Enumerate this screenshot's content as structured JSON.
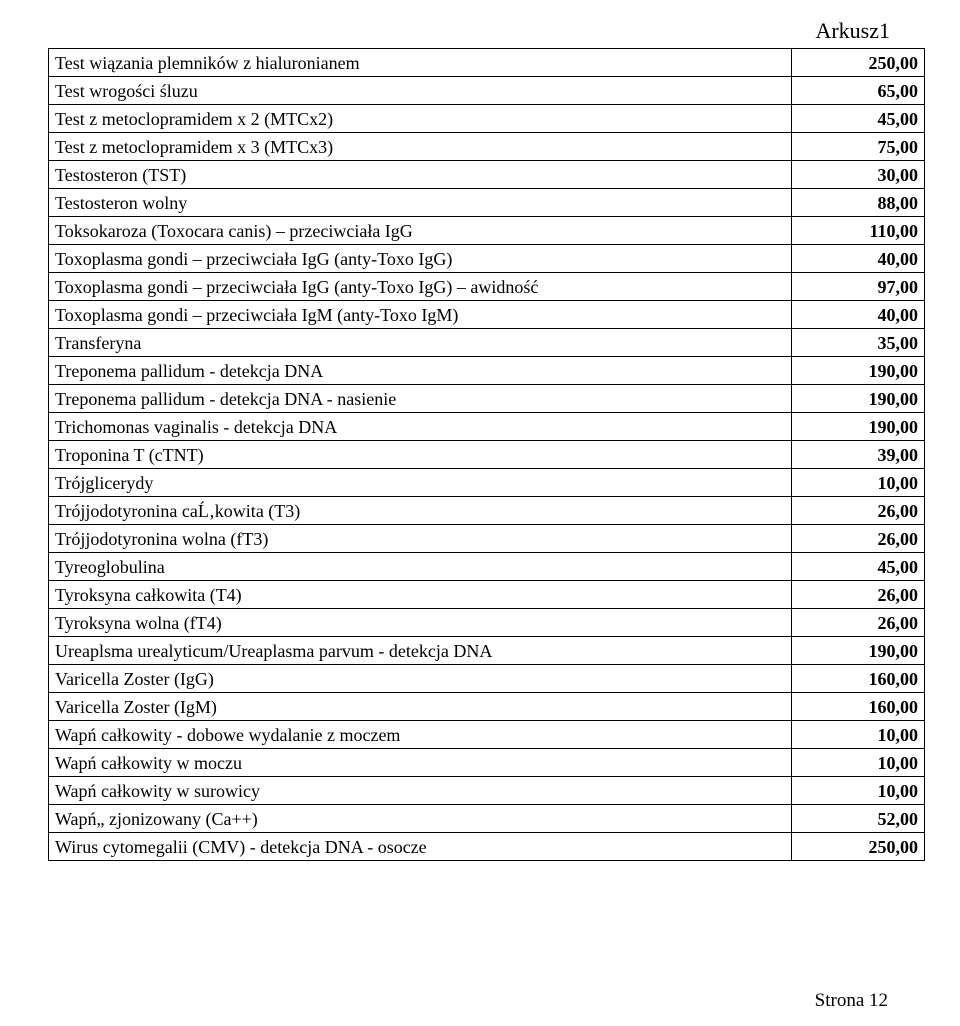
{
  "sheet_label": "Arkusz1",
  "footer": "Strona 12",
  "table": {
    "rows": [
      {
        "name": "Test wiązania plemników z hialuronianem",
        "price": "250,00"
      },
      {
        "name": "Test wrogości śluzu",
        "price": "65,00"
      },
      {
        "name": "Test z metoclopramidem x 2 (MTCx2)",
        "price": "45,00"
      },
      {
        "name": "Test z metoclopramidem x 3 (MTCx3)",
        "price": "75,00"
      },
      {
        "name": "Testosteron (TST)",
        "price": "30,00"
      },
      {
        "name": "Testosteron wolny",
        "price": "88,00"
      },
      {
        "name": "Toksokaroza (Toxocara canis) – przeciwciała IgG",
        "price": "110,00"
      },
      {
        "name": "Toxoplasma gondi – przeciwciała IgG (anty-Toxo IgG)",
        "price": "40,00"
      },
      {
        "name": "Toxoplasma gondi – przeciwciała IgG (anty-Toxo IgG) – awidność",
        "price": "97,00"
      },
      {
        "name": "Toxoplasma gondi – przeciwciała IgM (anty-Toxo IgM)",
        "price": "40,00"
      },
      {
        "name": "Transferyna",
        "price": "35,00"
      },
      {
        "name": "Treponema pallidum - detekcja DNA",
        "price": "190,00"
      },
      {
        "name": "Treponema pallidum - detekcja DNA - nasienie",
        "price": "190,00"
      },
      {
        "name": "Trichomonas vaginalis - detekcja DNA",
        "price": "190,00"
      },
      {
        "name": "Troponina T (cTNT)",
        "price": "39,00"
      },
      {
        "name": "Trójglicerydy",
        "price": "10,00"
      },
      {
        "name": "Trójjodotyronina caĹ‚kowita (T3)",
        "price": "26,00"
      },
      {
        "name": "Trójjodotyronina wolna (fT3)",
        "price": "26,00"
      },
      {
        "name": "Tyreoglobulina",
        "price": "45,00"
      },
      {
        "name": "Tyroksyna całkowita (T4)",
        "price": "26,00"
      },
      {
        "name": "Tyroksyna wolna (fT4)",
        "price": "26,00"
      },
      {
        "name": "Ureaplsma urealyticum/Ureaplasma parvum - detekcja DNA",
        "price": "190,00"
      },
      {
        "name": "Varicella Zoster (IgG)",
        "price": "160,00"
      },
      {
        "name": "Varicella Zoster (IgM)",
        "price": "160,00"
      },
      {
        "name": "Wapń całkowity - dobowe wydalanie z moczem",
        "price": "10,00"
      },
      {
        "name": "Wapń całkowity w moczu",
        "price": "10,00"
      },
      {
        "name": "Wapń całkowity w surowicy",
        "price": "10,00"
      },
      {
        "name": "Wapń„ zjonizowany (Ca++)",
        "price": "52,00"
      },
      {
        "name": "Wirus cytomegalii (CMV) - detekcja DNA - osocze",
        "price": "250,00"
      }
    ]
  }
}
